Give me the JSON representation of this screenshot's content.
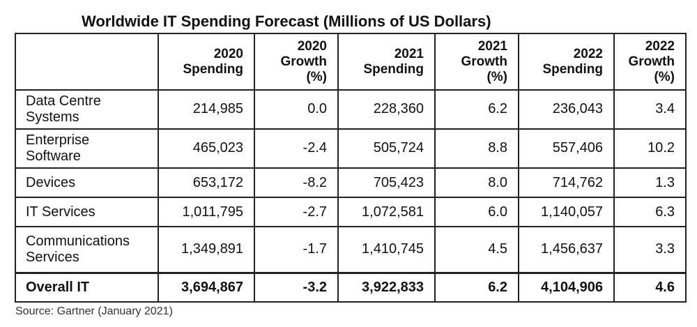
{
  "chart_data": {
    "type": "table",
    "title": "Worldwide IT Spending Forecast (Millions of US Dollars)",
    "columns": [
      [
        "2020",
        "Spending"
      ],
      [
        "2020",
        "Growth",
        "(%)"
      ],
      [
        "2021",
        "Spending"
      ],
      [
        "2021",
        "Growth",
        "(%)"
      ],
      [
        "2022",
        "Spending"
      ],
      [
        "2022",
        "Growth",
        "(%)"
      ]
    ],
    "rows": [
      {
        "label": [
          "Data Centre",
          "Systems"
        ],
        "values": [
          "214,985",
          "0.0",
          "228,360",
          "6.2",
          "236,043",
          "3.4"
        ]
      },
      {
        "label": [
          "Enterprise",
          "Software"
        ],
        "values": [
          "465,023",
          "-2.4",
          "505,724",
          "8.8",
          "557,406",
          "10.2"
        ]
      },
      {
        "label": [
          "Devices"
        ],
        "values": [
          "653,172",
          "-8.2",
          "705,423",
          "8.0",
          "714,762",
          "1.3"
        ]
      },
      {
        "label": [
          "IT Services"
        ],
        "values": [
          "1,011,795",
          "-2.7",
          "1,072,581",
          "6.0",
          "1,140,057",
          "6.3"
        ]
      },
      {
        "label": [
          "Communications",
          "Services"
        ],
        "values": [
          "1,349,891",
          "-1.7",
          "1,410,745",
          "4.5",
          "1,456,637",
          "3.3"
        ]
      },
      {
        "label": [
          "Overall IT"
        ],
        "values": [
          "3,694,867",
          "-3.2",
          "3,922,833",
          "6.2",
          "4,104,906",
          "4.6"
        ],
        "total": true
      }
    ],
    "source": "Source: Gartner (January 2021)"
  }
}
